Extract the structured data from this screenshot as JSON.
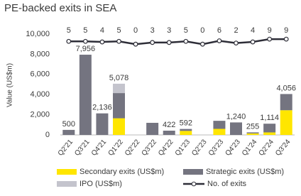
{
  "chart_data": {
    "type": "stacked-bar-line",
    "title": "PE-backed exits in SEA",
    "y_label": "Value (US$m)",
    "categories": [
      "Q2'21",
      "Q3'21",
      "Q4'21",
      "Q1'22",
      "Q2'22",
      "Q3'22",
      "Q4'22",
      "Q1'23",
      "Q2'23",
      "Q3'23",
      "Q4'23",
      "Q1'24",
      "Q2'24",
      "Q3'24"
    ],
    "series": [
      {
        "name": "Secondary exits (US$m)",
        "color": "#ffe600",
        "values": [
          0,
          0,
          0,
          1650,
          0,
          0,
          0,
          400,
          0,
          600,
          0,
          150,
          250,
          2450
        ]
      },
      {
        "name": "Strategic exits (US$m)",
        "color": "#747480",
        "values": [
          500,
          7956,
          2136,
          2500,
          0,
          1200,
          422,
          192,
          0,
          800,
          1240,
          105,
          864,
          1606
        ]
      },
      {
        "name": "IPO (US$m)",
        "color": "#c4c4cd",
        "values": [
          0,
          0,
          0,
          928,
          0,
          0,
          0,
          0,
          0,
          0,
          0,
          0,
          0,
          0
        ]
      },
      {
        "name": "No. of exits",
        "color": "#2e2e38",
        "axis": "y2",
        "values": [
          5,
          5,
          4,
          5,
          0,
          3,
          3,
          5,
          0,
          6,
          2,
          4,
          9,
          9
        ]
      }
    ],
    "total_labels": [
      "500",
      "7,956",
      "2,136",
      "5,078",
      null,
      null,
      "422",
      "592",
      null,
      null,
      "1,240",
      "255",
      "1,114",
      "4,056"
    ],
    "ylim": [
      0,
      10000
    ],
    "yticks": [
      0,
      {
        "value": 2000,
        "label": "2,000"
      },
      {
        "value": 4000,
        "label": "4,000"
      },
      {
        "value": 6000,
        "label": "6,000"
      },
      {
        "value": 8000,
        "label": "8,000"
      },
      {
        "value": 10000,
        "label": "10,000"
      }
    ],
    "y2lim": [
      -162,
      18
    ],
    "grid": false
  }
}
